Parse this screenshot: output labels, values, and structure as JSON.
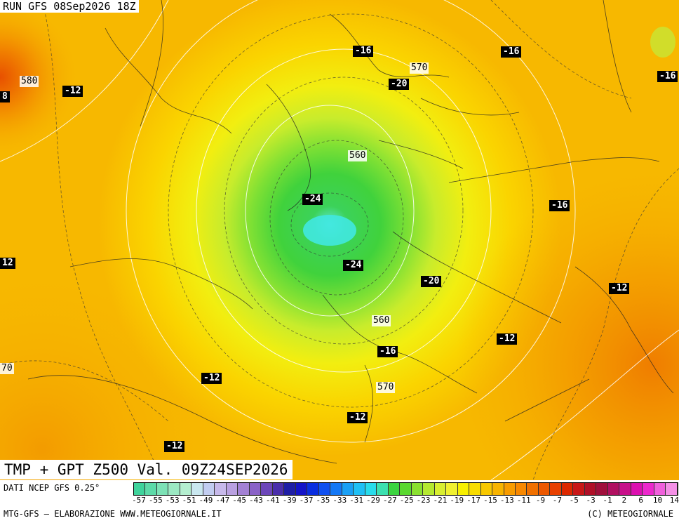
{
  "header": {
    "run_label": "RUN GFS 08Sep2026 18Z"
  },
  "title": {
    "product": "TMP + GPT Z500 Val. 09Z24SEP2026"
  },
  "map": {
    "temperature_labels": [
      "-16",
      "-16",
      "-16",
      "-12",
      "-20",
      "-24",
      "-24",
      "-16",
      "-20",
      "-12",
      "-12",
      "-12",
      "-16",
      "-12",
      "-12",
      "12",
      "8"
    ],
    "geopotential_labels": [
      "570",
      "580",
      "560",
      "560",
      "570",
      "70"
    ]
  },
  "footer": {
    "source": "DATI NCEP GFS 0.25°",
    "left": "MTG-GFS — ELABORAZIONE WWW.METEOGIORNALE.IT",
    "right": "(C) METEOGIORNALE"
  },
  "colorbar": {
    "ticks": [
      "-57",
      "-55",
      "-53",
      "-51",
      "-49",
      "-47",
      "-45",
      "-43",
      "-41",
      "-39",
      "-37",
      "-35",
      "-33",
      "-31",
      "-29",
      "-27",
      "-25",
      "-23",
      "-21",
      "-19",
      "-17",
      "-15",
      "-13",
      "-11",
      "-9",
      "-7",
      "-5",
      "-3",
      "-1",
      "2",
      "6",
      "10",
      "14"
    ],
    "colors": [
      "#3fd39b",
      "#5ddaa8",
      "#7de2b6",
      "#9ce9c3",
      "#b5efd0",
      "#c9e7ef",
      "#c2cdf0",
      "#c7b9ea",
      "#b9a0e0",
      "#a381d4",
      "#8a62c7",
      "#6c46b9",
      "#4a2eab",
      "#1e1ea5",
      "#1414c8",
      "#0a2ee0",
      "#1050f0",
      "#1478f5",
      "#1aa0f5",
      "#20c0f5",
      "#29dceb",
      "#3ce0b0",
      "#3cd440",
      "#5ad830",
      "#8ae030",
      "#b4e830",
      "#d8ee30",
      "#f0f030",
      "#f8f000",
      "#f8dc00",
      "#f8c800",
      "#f8b400",
      "#f89c00",
      "#f88800",
      "#f07000",
      "#ec5800",
      "#e84000",
      "#dc2800",
      "#c81818",
      "#b01028",
      "#a0103c",
      "#b01060",
      "#c8108a",
      "#dc10b0",
      "#ec28cc",
      "#f060dc",
      "#f490e6"
    ]
  }
}
